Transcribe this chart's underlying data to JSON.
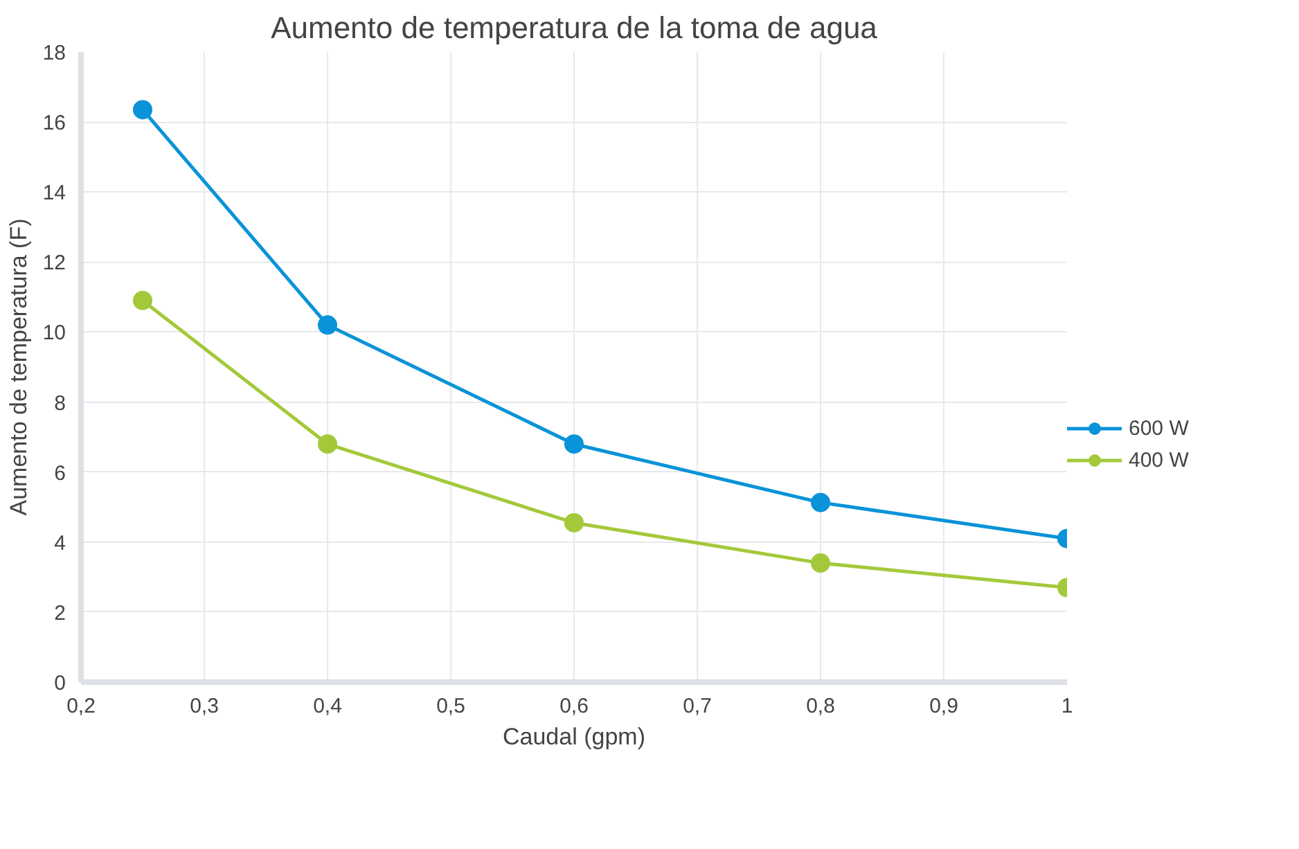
{
  "chart_data": {
    "type": "line",
    "title": "Aumento de temperatura de la toma de agua",
    "xlabel": "Caudal (gpm)",
    "ylabel": "Aumento de temperatura (F)",
    "x": [
      0.25,
      0.4,
      0.6,
      0.8,
      1
    ],
    "series": [
      {
        "name": "600 W",
        "color": "#0a93d8",
        "values": [
          16.35,
          10.2,
          6.8,
          5.13,
          4.1
        ]
      },
      {
        "name": "400 W",
        "color": "#a3c93a",
        "values": [
          10.9,
          6.8,
          4.55,
          3.4,
          2.7
        ]
      }
    ],
    "xlim": [
      0.2,
      1
    ],
    "xticks": [
      {
        "value": 0.2,
        "label": "0,2"
      },
      {
        "value": 0.3,
        "label": "0,3"
      },
      {
        "value": 0.4,
        "label": "0,4"
      },
      {
        "value": 0.5,
        "label": "0,5"
      },
      {
        "value": 0.6,
        "label": "0,6"
      },
      {
        "value": 0.7,
        "label": "0,7"
      },
      {
        "value": 0.8,
        "label": "0,8"
      },
      {
        "value": 0.9,
        "label": "0,9"
      },
      {
        "value": 1,
        "label": "1"
      }
    ],
    "ylim": [
      0,
      18
    ],
    "yticks": [
      0,
      2,
      4,
      6,
      8,
      10,
      12,
      14,
      16,
      18
    ],
    "grid": true,
    "legend": "right",
    "marker": "circle",
    "line_style": "solid"
  }
}
